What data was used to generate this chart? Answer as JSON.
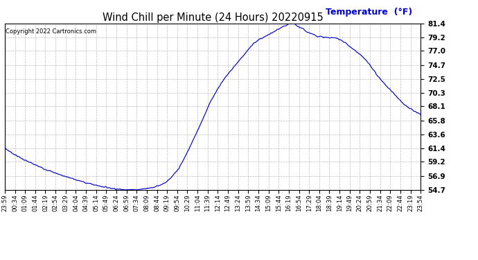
{
  "title": "Wind Chill per Minute (24 Hours) 20220915",
  "temp_label": "Temperature  (°F)",
  "copyright_text": "Copyright 2022 Cartronics.com",
  "line_color": "#0000cc",
  "background_color": "#ffffff",
  "plot_bg_color": "#ffffff",
  "grid_color": "#aaaaaa",
  "yticks": [
    54.7,
    56.9,
    59.2,
    61.4,
    63.6,
    65.8,
    68.1,
    70.3,
    72.5,
    74.7,
    77.0,
    79.2,
    81.4
  ],
  "ylim": [
    54.7,
    81.4
  ],
  "x_labels": [
    "23:59",
    "00:34",
    "01:09",
    "01:44",
    "02:19",
    "02:54",
    "03:29",
    "04:04",
    "04:39",
    "05:14",
    "05:49",
    "06:24",
    "06:59",
    "07:34",
    "08:09",
    "08:44",
    "09:19",
    "09:54",
    "10:29",
    "11:04",
    "11:39",
    "12:14",
    "12:49",
    "13:24",
    "13:59",
    "14:34",
    "15:09",
    "15:44",
    "16:19",
    "16:54",
    "17:29",
    "18:04",
    "18:39",
    "19:14",
    "19:49",
    "20:24",
    "20:59",
    "21:34",
    "22:09",
    "22:44",
    "23:19",
    "23:54"
  ],
  "ctrl_x": [
    0,
    40,
    100,
    200,
    320,
    380,
    420,
    450,
    480,
    520,
    560,
    600,
    640,
    680,
    720,
    760,
    800,
    840,
    870,
    910,
    950,
    975,
    995,
    1020,
    1060,
    1100,
    1150,
    1200,
    1250,
    1300,
    1350,
    1395,
    1440
  ],
  "ctrl_y": [
    61.4,
    60.2,
    58.8,
    57.0,
    55.4,
    54.9,
    54.7,
    54.7,
    54.85,
    55.2,
    56.0,
    58.0,
    61.5,
    65.5,
    69.5,
    72.5,
    74.8,
    77.0,
    78.5,
    79.5,
    80.5,
    81.1,
    81.4,
    80.8,
    79.8,
    79.2,
    79.0,
    77.5,
    75.5,
    72.5,
    70.0,
    68.0,
    66.8
  ]
}
